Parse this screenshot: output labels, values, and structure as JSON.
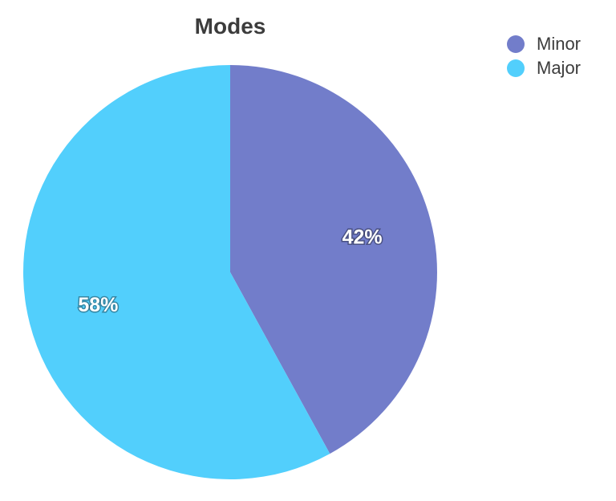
{
  "chart_data": {
    "type": "pie",
    "title": "Modes",
    "categories": [
      "Minor",
      "Major"
    ],
    "values": [
      42,
      58
    ],
    "labels": [
      "42%",
      "58%"
    ],
    "colors": [
      "#727dca",
      "#52cffc"
    ],
    "legend_position": "top-right"
  }
}
